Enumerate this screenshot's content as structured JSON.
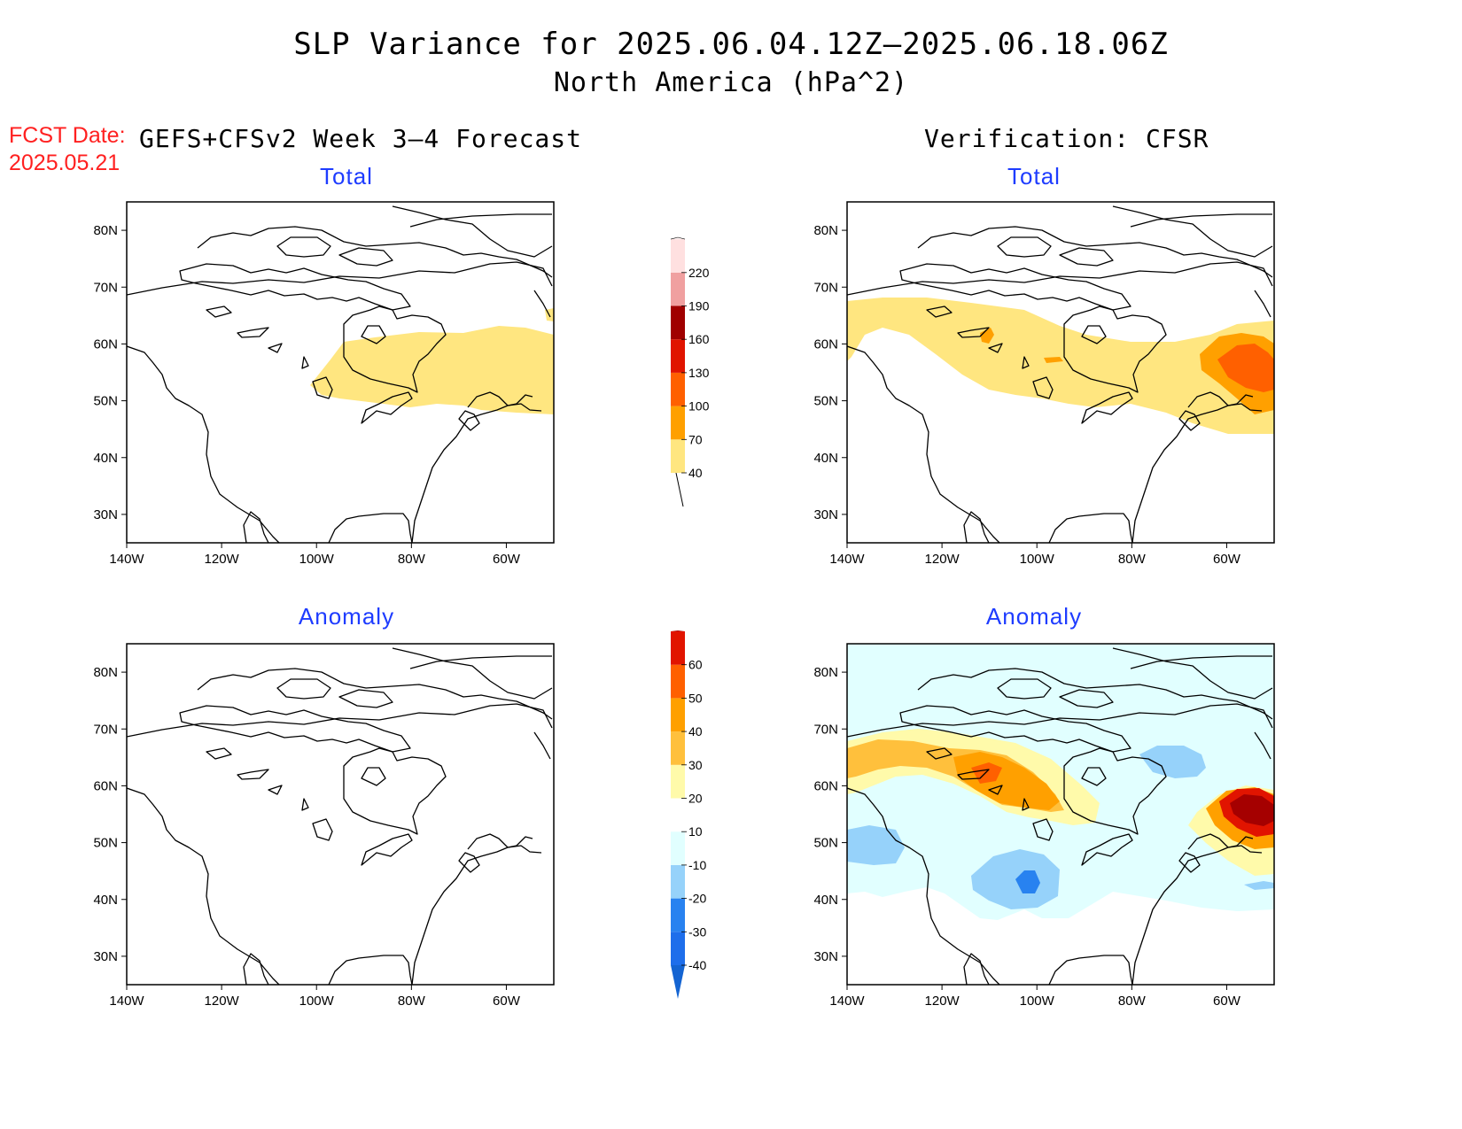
{
  "title": {
    "line1": "SLP Variance for 2025.06.04.12Z–2025.06.18.06Z",
    "line2": "North America (hPa^2)"
  },
  "fcst": {
    "label": "FCST Date:",
    "date": "2025.05.21"
  },
  "headers": {
    "left": "GEFS+CFSv2 Week 3–4 Forecast",
    "right": "Verification: CFSR"
  },
  "panels": {
    "forecast_total": {
      "title": "Total"
    },
    "verification_total": {
      "title": "Total"
    },
    "forecast_anomaly": {
      "title": "Anomaly"
    },
    "verification_anomaly": {
      "title": "Anomaly"
    }
  },
  "axes": {
    "lon_ticks": [
      {
        "value": -140,
        "label": "140W"
      },
      {
        "value": -120,
        "label": "120W"
      },
      {
        "value": -100,
        "label": "100W"
      },
      {
        "value": -80,
        "label": "80W"
      },
      {
        "value": -60,
        "label": "60W"
      }
    ],
    "lat_ticks": [
      {
        "value": 30,
        "label": "30N"
      },
      {
        "value": 40,
        "label": "40N"
      },
      {
        "value": 50,
        "label": "50N"
      },
      {
        "value": 60,
        "label": "60N"
      },
      {
        "value": 70,
        "label": "70N"
      },
      {
        "value": 80,
        "label": "80N"
      }
    ],
    "lon_range": [
      -140,
      -50
    ],
    "lat_range": [
      25,
      85
    ]
  },
  "colorbars": {
    "total": {
      "levels": [
        40,
        70,
        100,
        130,
        160,
        190,
        220
      ],
      "colors": [
        "#ffe680",
        "#ffa000",
        "#ff6000",
        "#e01400",
        "#a00000",
        "#f0a0a0",
        "#ffe0e0"
      ],
      "labels": [
        "40",
        "70",
        "100",
        "130",
        "160",
        "190",
        "220"
      ]
    },
    "anomaly": {
      "levels": [
        -40,
        -30,
        -20,
        -10,
        10,
        20,
        30,
        40,
        50,
        60
      ],
      "colors": [
        "#1464d2",
        "#1e6eeb",
        "#2882f0",
        "#96d2fa",
        "#e1ffff",
        "#ffffff",
        "#fffaaa",
        "#ffc03c",
        "#ffa000",
        "#ff6000",
        "#e11400",
        "#a50000"
      ],
      "labels": [
        "-40",
        "-30",
        "-20",
        "-10",
        "10",
        "20",
        "30",
        "40",
        "50",
        "60"
      ]
    }
  },
  "map_colors": {
    "total_40": "#ffe680",
    "total_70": "#ffa000",
    "total_100": "#ff6000",
    "anom_m10": "#e1ffff",
    "anom_m20": "#96d2fa",
    "anom_m30": "#2882f0",
    "anom_10": "#fffaaa",
    "anom_20": "#ffc03c",
    "anom_30": "#ffa000",
    "anom_40": "#ff6000",
    "anom_50": "#e11400",
    "anom_60": "#a50000"
  }
}
